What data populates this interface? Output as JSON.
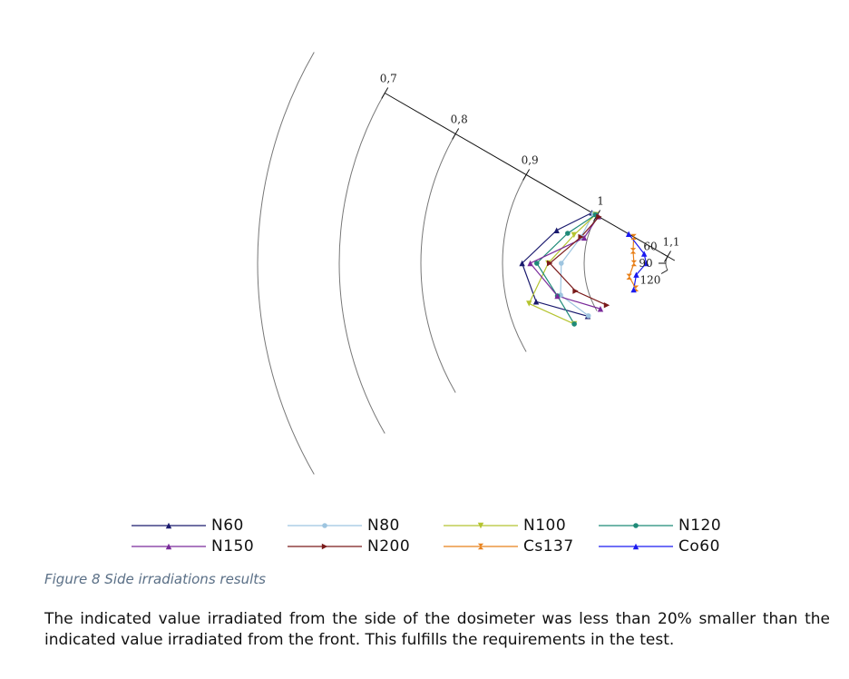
{
  "chart_data": {
    "type": "polar-line",
    "angle_ticks": [
      "60",
      "90",
      "120"
    ],
    "radial_ticks": [
      "1,1",
      "1",
      "0,9",
      "0,8",
      "0,7"
    ],
    "radial_values": [
      1.1,
      1.0,
      0.9,
      0.8,
      0.7
    ],
    "r_range": [
      0.55,
      1.1
    ],
    "angles": [
      60,
      75,
      90,
      105,
      120
    ],
    "series": [
      {
        "name": "N60",
        "color": "#1a1a6e",
        "marker": "triangle",
        "values": [
          0.993,
          0.961,
          0.924,
          0.935,
          0.987
        ]
      },
      {
        "name": "N80",
        "color": "#9ec5e0",
        "marker": "circle",
        "values": [
          0.995,
          0.992,
          0.972,
          0.966,
          0.988
        ]
      },
      {
        "name": "N100",
        "color": "#b5c430",
        "marker": "tri-down",
        "values": [
          0.998,
          0.983,
          0.956,
          0.926,
          0.968
        ]
      },
      {
        "name": "N120",
        "color": "#1f8a78",
        "marker": "circle",
        "values": [
          0.998,
          0.975,
          0.942,
          0.962,
          0.968
        ]
      },
      {
        "name": "N150",
        "color": "#7a2a9a",
        "marker": "triangle",
        "values": [
          1.002,
          0.996,
          0.934,
          0.962,
          1.005
        ]
      },
      {
        "name": "N200",
        "color": "#7a1a1a",
        "marker": "tri-right",
        "values": [
          1.003,
          0.992,
          0.958,
          0.985,
          1.014
        ]
      },
      {
        "name": "Cs137",
        "color": "#e8801a",
        "marker": "hourglass",
        "values": [
          1.052,
          1.058,
          1.061,
          1.053,
          1.055
        ]
      },
      {
        "name": "Co60",
        "color": "#1a1af0",
        "marker": "triangle",
        "values": [
          1.045,
          1.072,
          1.076,
          1.062,
          1.052
        ]
      }
    ]
  },
  "caption": "Figure 8 Side irradiations results",
  "body_text": "The indicated value irradiated from the side of the dosimeter was less than 20% smaller than the indicated value irradiated from the front. This fulfills the requirements in the test."
}
